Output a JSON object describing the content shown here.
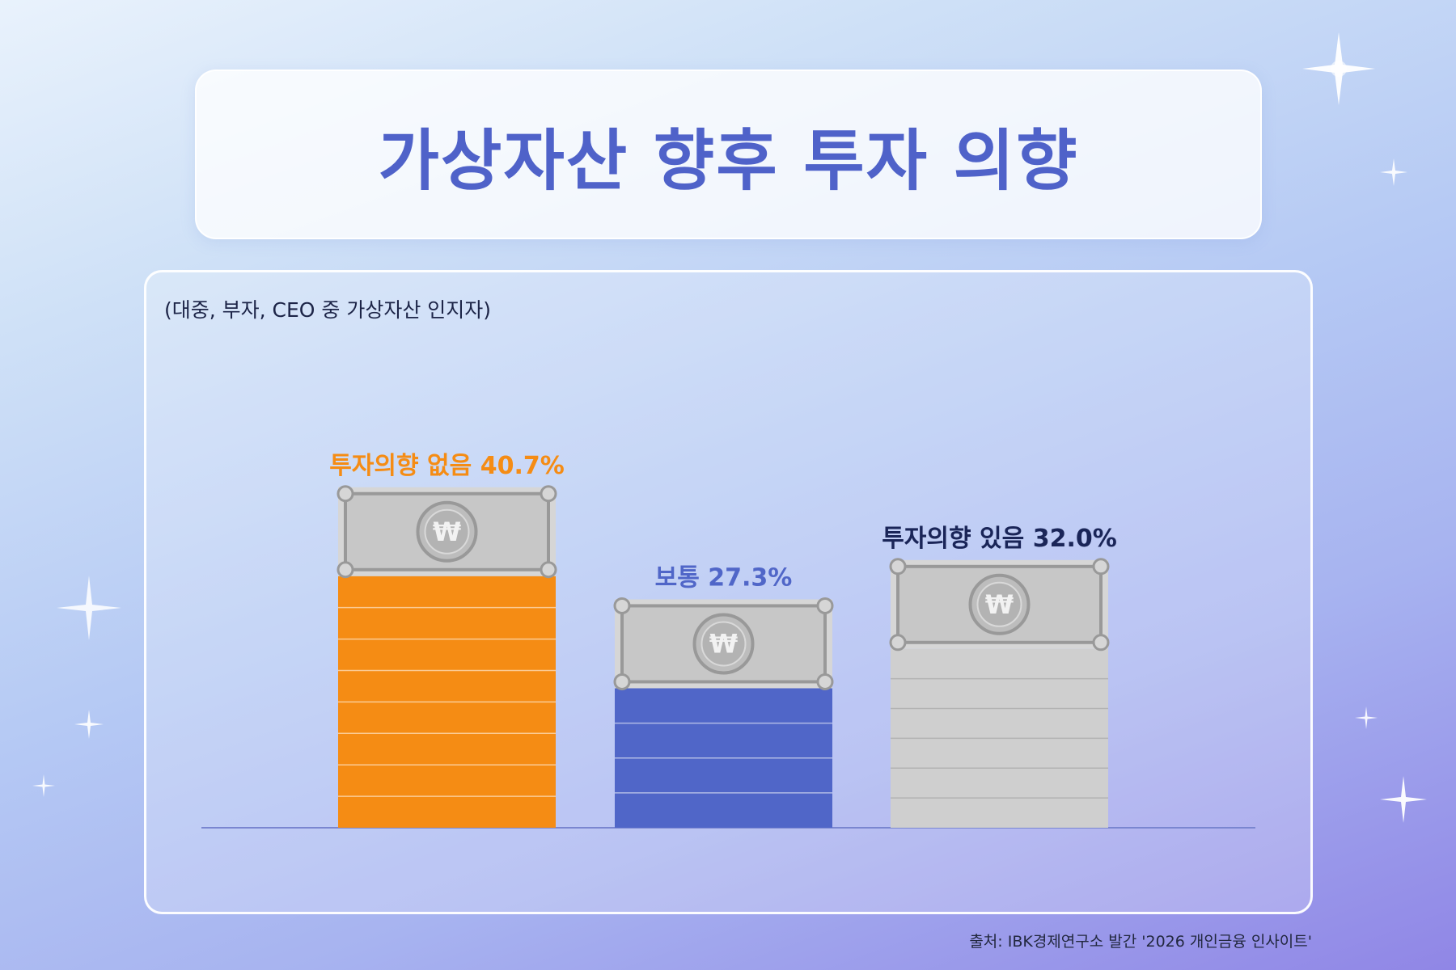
{
  "title": "가상자산 향후 투자 의향",
  "subtitle": "(대중, 부자, CEO 중 가상자산 인지자)",
  "source": "출처: IBK경제연구소 발간 '2026 개인금융 인사이트'",
  "icons": {
    "bill": "won-banknote-icon",
    "sparkle": "sparkle-icon"
  },
  "colors": {
    "title": "#4f62c9",
    "bar_no": "#f58c14",
    "bar_neutral": "#5066c8",
    "bar_yes": "#cfcfcf",
    "bill": "#c7c7c7",
    "bill_dark": "#999999"
  },
  "chart_data": {
    "type": "bar",
    "categories": [
      "투자의향 없음",
      "보통",
      "투자의향 있음"
    ],
    "values": [
      40.7,
      27.3,
      32.0
    ],
    "data_labels": [
      "투자의향 없음 40.7%",
      "보통 27.3%",
      "투자의향 있음 32.0%"
    ],
    "label_colors": [
      "#f58c14",
      "#5066c8",
      "#1a2558"
    ],
    "bar_colors": [
      "#f58c14",
      "#5066c8",
      "#cfcfcf"
    ],
    "unit": "%",
    "ylim": [
      0,
      45
    ],
    "grid": false,
    "legend": "none"
  }
}
